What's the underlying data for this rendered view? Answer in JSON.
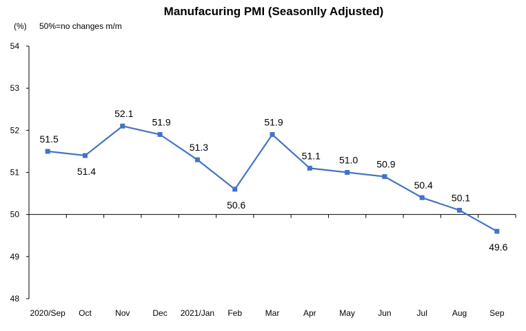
{
  "chart_data": {
    "type": "line",
    "title": "Manufacuring PMI (Seasonlly Adjusted)",
    "unit_label": "(%)",
    "note": "50%=no changes  m/m",
    "categories": [
      "2020/Sep",
      "Oct",
      "Nov",
      "Dec",
      "2021/Jan",
      "Feb",
      "Mar",
      "Apr",
      "May",
      "Jun",
      "Jul",
      "Aug",
      "Sep"
    ],
    "series": [
      {
        "values": [
          51.5,
          51.4,
          52.1,
          51.9,
          51.3,
          50.6,
          51.9,
          51.1,
          51.0,
          50.9,
          50.4,
          50.1,
          49.6
        ]
      }
    ],
    "data_labels": [
      "51.5",
      "51.4",
      "52.1",
      "51.9",
      "51.3",
      "50.6",
      "51.9",
      "51.1",
      "51.0",
      "50.9",
      "50.4",
      "50.1",
      "49.6"
    ],
    "y_ticks": [
      48,
      49,
      50,
      51,
      52,
      53,
      54
    ],
    "ylim": [
      48,
      54
    ],
    "x_axis_crosses_at": 50,
    "grid": false,
    "legend": "none",
    "colors": {
      "line": "#4472C4",
      "axis": "#000000"
    }
  }
}
